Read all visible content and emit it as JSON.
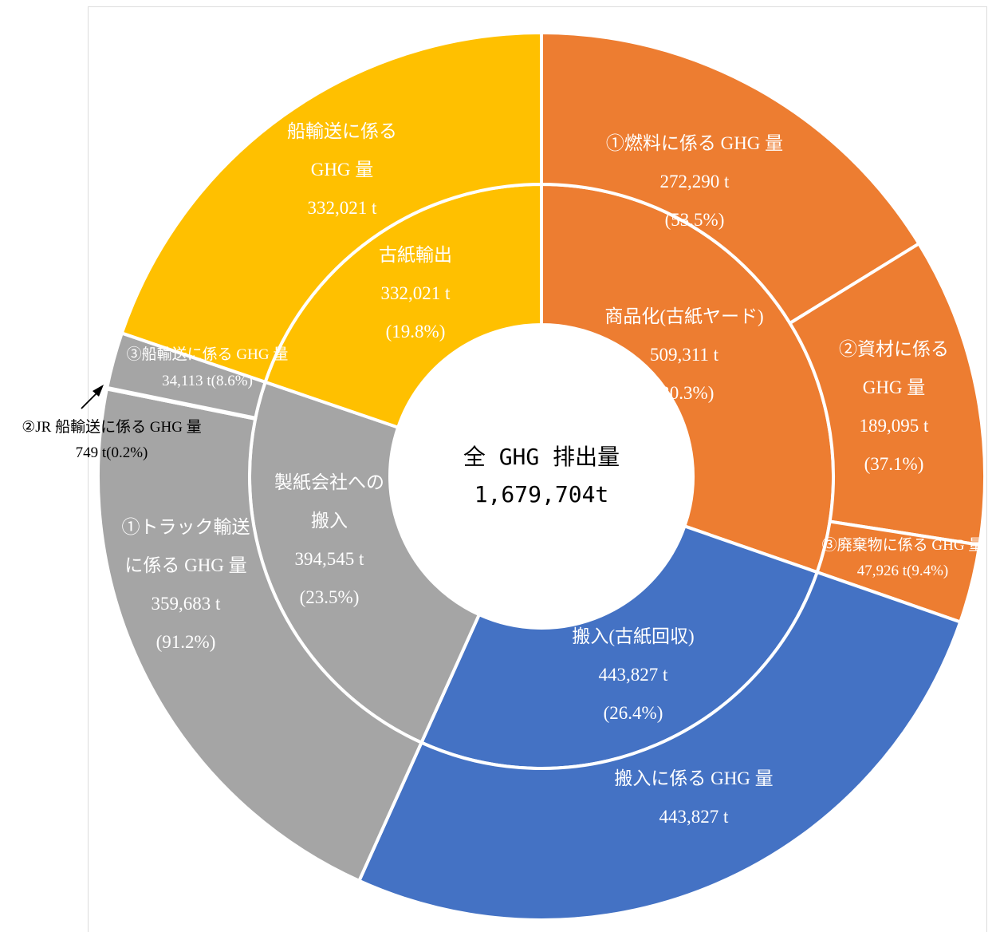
{
  "colors": {
    "orange": "#ED7D31",
    "blue": "#4472C4",
    "gray": "#A5A5A5",
    "yellow": "#FFC000",
    "separator": "#ffffff"
  },
  "center": {
    "line1": "全 GHG 排出量",
    "line2": "1,679,704t"
  },
  "chart_data": {
    "type": "sunburst",
    "total": 1679704,
    "unit": "t",
    "inner": [
      {
        "id": "commodity",
        "value": 509311,
        "color": "orange",
        "lines": [
          "商品化(古紙ヤード)",
          "509,311 t",
          "(30.3%)"
        ]
      },
      {
        "id": "collection",
        "value": 443827,
        "color": "blue",
        "lines": [
          "搬入(古紙回収)",
          "443,827 t",
          "(26.4%)"
        ]
      },
      {
        "id": "delivery",
        "value": 394545,
        "color": "gray",
        "lines": [
          "製紙会社への",
          "搬入",
          "394,545 t",
          "(23.5%)"
        ]
      },
      {
        "id": "export",
        "value": 332021,
        "color": "yellow",
        "lines": [
          "古紙輸出",
          "332,021 t",
          "(19.8%)"
        ]
      }
    ],
    "outer": [
      {
        "id": "fuel",
        "parent": "commodity",
        "value": 272290,
        "color": "orange",
        "lines": [
          "①燃料に係る GHG 量",
          "272,290 t",
          "(53.5%)"
        ]
      },
      {
        "id": "materials",
        "parent": "commodity",
        "value": 189095,
        "color": "orange",
        "lines": [
          "②資材に係る",
          "GHG 量",
          "189,095 t",
          "(37.1%)"
        ]
      },
      {
        "id": "waste",
        "parent": "commodity",
        "value": 47926,
        "color": "orange",
        "lines": [
          "③廃棄物に係る GHG 量",
          "47,926 t(9.4%)"
        ]
      },
      {
        "id": "collection-ghg",
        "parent": "collection",
        "value": 443827,
        "color": "blue",
        "lines": [
          "搬入に係る GHG 量",
          "443,827 t"
        ]
      },
      {
        "id": "truck",
        "parent": "delivery",
        "value": 359683,
        "color": "gray",
        "lines": [
          "①トラック輸送",
          "に係る GHG 量",
          "359,683 t",
          "(91.2%)"
        ]
      },
      {
        "id": "jr-ship",
        "parent": "delivery",
        "value": 749,
        "color": "gray",
        "lines": [
          "②JR 船輸送に係る GHG 量",
          "749 t(0.2%)"
        ]
      },
      {
        "id": "ship",
        "parent": "delivery",
        "value": 34113,
        "color": "gray",
        "lines": [
          "③船輸送に係る GHG 量",
          "34,113 t(8.6%)"
        ]
      },
      {
        "id": "export-ghg",
        "parent": "export",
        "value": 332021,
        "color": "yellow",
        "lines": [
          "船輸送に係る",
          "GHG 量",
          "332,021 t"
        ]
      }
    ]
  }
}
